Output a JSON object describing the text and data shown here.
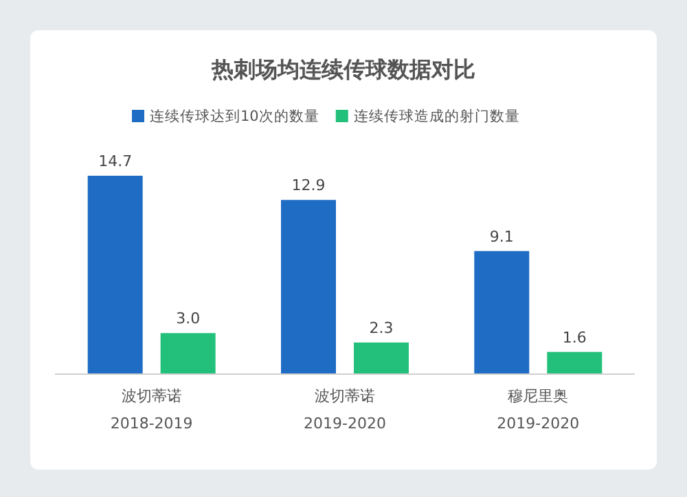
{
  "chart_data": {
    "type": "bar",
    "title": "热刺场均连续传球数据对比",
    "categories": [
      "波切蒂诺\n2018-2019",
      "波切蒂诺\n2019-2020",
      "穆尼里奥\n2019-2020"
    ],
    "series": [
      {
        "name": "连续传球达到10次的数量",
        "color": "#1e6cc4",
        "values": [
          14.7,
          12.9,
          9.1
        ],
        "value_labels": [
          "14.7",
          "12.9",
          "9.1"
        ]
      },
      {
        "name": "连续传球造成的射门数量",
        "color": "#22c07a",
        "values": [
          3.0,
          2.3,
          1.6
        ],
        "value_labels": [
          "3.0",
          "2.3",
          "1.6"
        ]
      }
    ],
    "legend": "top"
  }
}
